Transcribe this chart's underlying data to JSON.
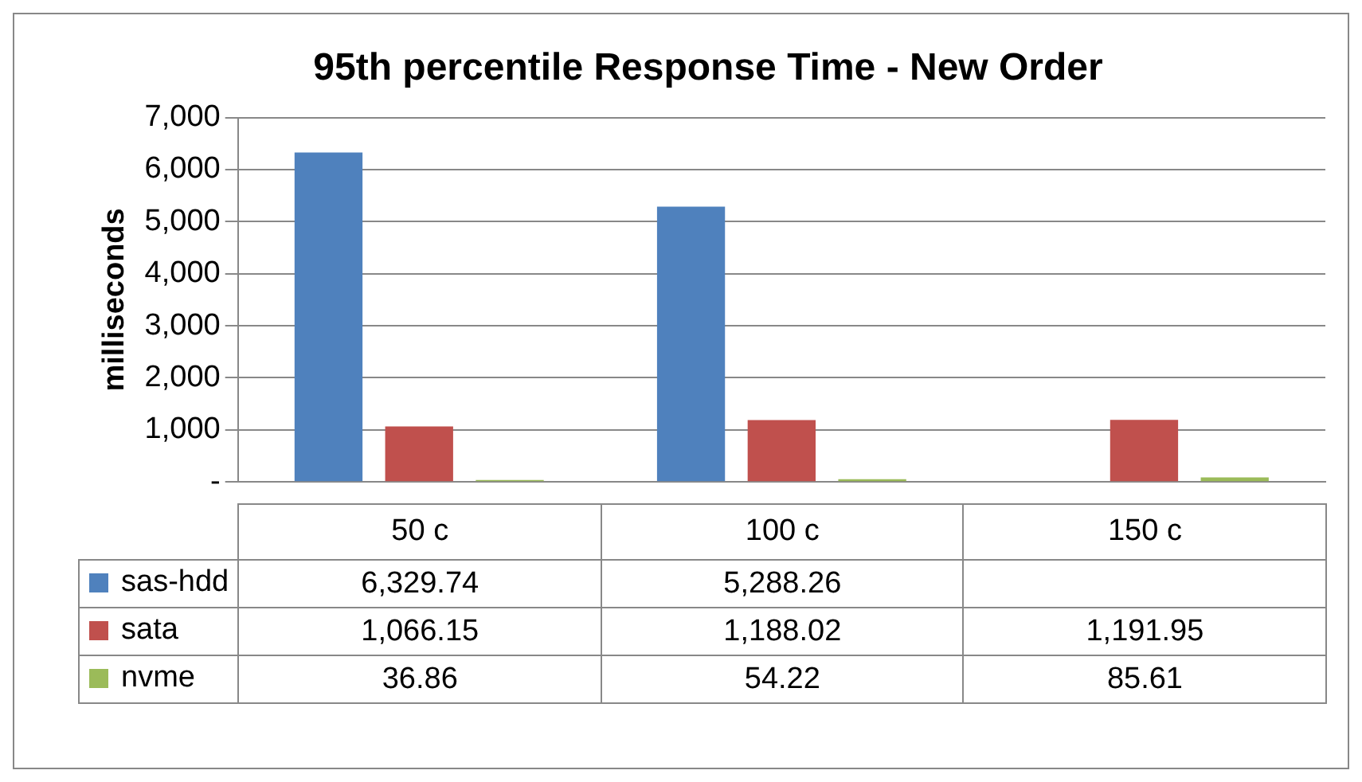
{
  "chart_data": {
    "type": "bar",
    "title": "95th percentile Response Time - New Order",
    "ylabel": "milliseconds",
    "categories": [
      "50 c",
      "100 c",
      "150 c"
    ],
    "series": [
      {
        "name": "sas-hdd",
        "color": "#4f81bd",
        "values": [
          6329.74,
          5288.26,
          null
        ],
        "value_labels": [
          "6,329.74",
          "5,288.26",
          null
        ]
      },
      {
        "name": "sata",
        "color": "#c0504d",
        "values": [
          1066.15,
          1188.02,
          1191.95
        ],
        "value_labels": [
          "1,066.15",
          "1,188.02",
          "1,191.95"
        ]
      },
      {
        "name": "nvme",
        "color": "#9bbb59",
        "values": [
          36.86,
          54.22,
          85.61
        ],
        "value_labels": [
          "36.86",
          "54.22",
          "85.61"
        ]
      }
    ],
    "ylim": [
      0,
      7000
    ],
    "yticks": [
      {
        "value": 0,
        "label": "-"
      },
      {
        "value": 1000,
        "label": "1,000"
      },
      {
        "value": 2000,
        "label": "2,000"
      },
      {
        "value": 3000,
        "label": "3,000"
      },
      {
        "value": 4000,
        "label": "4,000"
      },
      {
        "value": 5000,
        "label": "5,000"
      },
      {
        "value": 6000,
        "label": "6,000"
      },
      {
        "value": 7000,
        "label": "7,000"
      }
    ],
    "grid": "y",
    "legend": "bottom"
  }
}
